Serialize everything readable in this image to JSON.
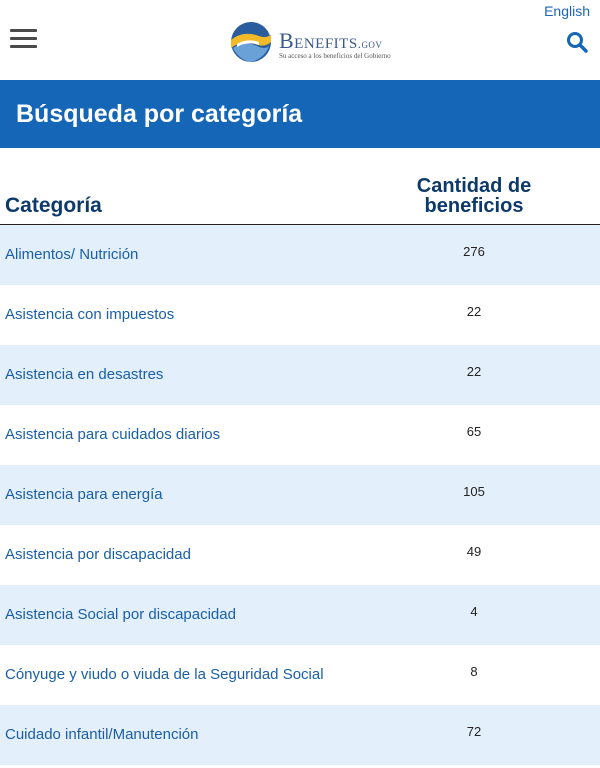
{
  "header": {
    "language_link": "English",
    "logo_word": "Benefits",
    "logo_suffix": ".gov",
    "logo_tagline": "Su acceso a los beneficios del Gobierno"
  },
  "banner": {
    "title": "Búsqueda por categoría"
  },
  "table": {
    "col_category": "Categoría",
    "col_count_line1": "Cantidad de",
    "col_count_line2": "beneficios",
    "rows": [
      {
        "category": "Alimentos/ Nutrición",
        "count": "276"
      },
      {
        "category": "Asistencia con impuestos",
        "count": "22"
      },
      {
        "category": "Asistencia en desastres",
        "count": "22"
      },
      {
        "category": "Asistencia para cuidados diarios",
        "count": "65"
      },
      {
        "category": "Asistencia para energía",
        "count": "105"
      },
      {
        "category": "Asistencia por discapacidad",
        "count": "49"
      },
      {
        "category": "Asistencia Social por discapacidad",
        "count": "4"
      },
      {
        "category": "Cónyuge y viudo o viuda de la Seguridad Social",
        "count": "8"
      },
      {
        "category": "Cuidado infantil/Manutención",
        "count": "72"
      }
    ]
  },
  "colors": {
    "banner": "#1566b7",
    "link": "#1a5fa8",
    "alt_row": "#e3effb",
    "heading": "#0d3a6b"
  },
  "icons": {
    "menu": "hamburger-menu-icon",
    "search": "search-icon",
    "logo": "benefits-logo-icon"
  }
}
